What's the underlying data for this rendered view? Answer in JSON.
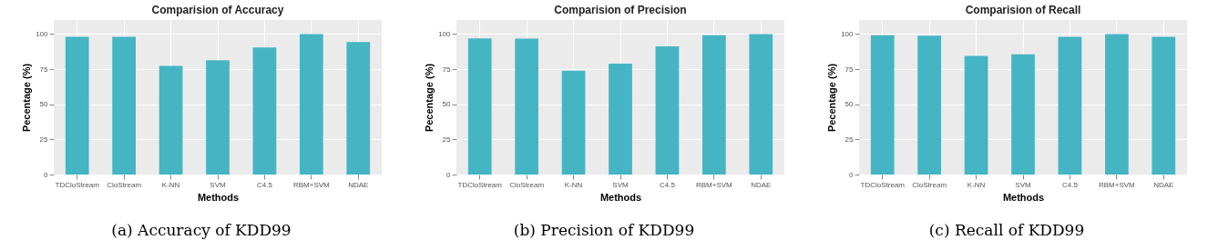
{
  "chart_data": [
    {
      "type": "bar",
      "title": "Comparision of Accuracy",
      "xlabel": "Methods",
      "ylabel": "Pecentage (%)",
      "categories": [
        "TDCloStream",
        "CloStream",
        "K-NN",
        "SVM",
        "C4.5",
        "RBM+SVM",
        "NDAE"
      ],
      "values": [
        98,
        98,
        77.3,
        81.4,
        90.4,
        100,
        94.3
      ],
      "color": "#45b5c4",
      "ylim": [
        0,
        110
      ],
      "yticks": [
        0,
        25,
        50,
        75,
        100
      ],
      "grid": true,
      "annotations": [
        "(a) Accuracy of KDD99"
      ]
    },
    {
      "type": "bar",
      "title": "Comparision of Precision",
      "xlabel": "Methods",
      "ylabel": "Pecentage (%)",
      "categories": [
        "TDCloStream",
        "CloStream",
        "K-NN",
        "SVM",
        "C4.5",
        "RBM+SVM",
        "NDAE"
      ],
      "values": [
        96.9,
        96.7,
        74,
        78.9,
        91.2,
        99.2,
        100
      ],
      "color": "#45b5c4",
      "ylim": [
        0,
        110
      ],
      "yticks": [
        0,
        25,
        50,
        75,
        100
      ],
      "grid": true,
      "annotations": [
        "(b) Precision of KDD99"
      ]
    },
    {
      "type": "bar",
      "title": "Comparision of Recall",
      "xlabel": "Methods",
      "ylabel": "Pecentage (%)",
      "categories": [
        "TDCloStream",
        "CloStream",
        "K-NN",
        "SVM",
        "C4.5",
        "RBM+SVM",
        "NDAE"
      ],
      "values": [
        99.2,
        98.8,
        84.4,
        85.5,
        98,
        100,
        98
      ],
      "color": "#45b5c4",
      "ylim": [
        0,
        110
      ],
      "yticks": [
        0,
        25,
        50,
        75,
        100
      ],
      "grid": true,
      "annotations": [
        "(c) Recall of KDD99"
      ]
    }
  ]
}
